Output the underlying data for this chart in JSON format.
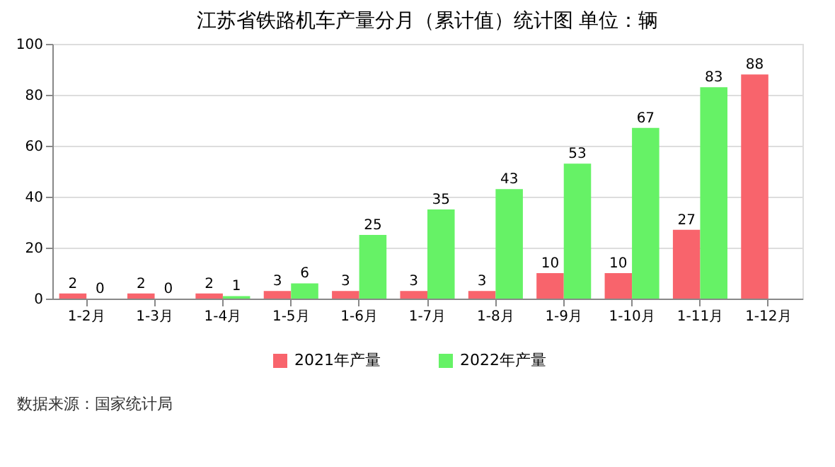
{
  "chart_data": {
    "type": "bar",
    "title": "江苏省铁路机车产量分月（累计值）统计图 单位：辆",
    "categories": [
      "1-2月",
      "1-3月",
      "1-4月",
      "1-5月",
      "1-6月",
      "1-7月",
      "1-8月",
      "1-9月",
      "1-10月",
      "1-11月",
      "1-12月"
    ],
    "series": [
      {
        "name": "2021年产量",
        "color": "#f8646c",
        "values": [
          2,
          2,
          2,
          3,
          3,
          3,
          3,
          10,
          10,
          27,
          88
        ]
      },
      {
        "name": "2022年产量",
        "color": "#66f266",
        "values": [
          0,
          0,
          1,
          6,
          25,
          35,
          43,
          53,
          67,
          83,
          null
        ]
      }
    ],
    "ylim": [
      0,
      100
    ],
    "yticks": [
      0,
      20,
      40,
      60,
      80,
      100
    ],
    "grid": "y",
    "legend": "bottom",
    "data_labels": true,
    "annotations": [
      "数据来源：国家统计局"
    ]
  }
}
